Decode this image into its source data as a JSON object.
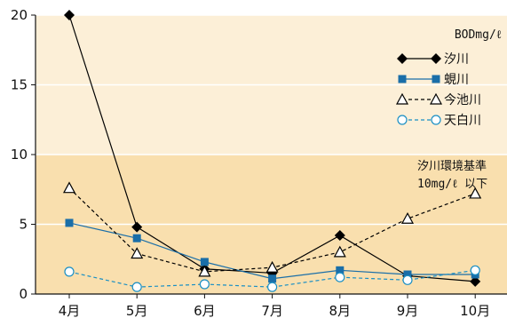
{
  "chart_data": {
    "type": "line",
    "categories": [
      "4月",
      "5月",
      "6月",
      "7月",
      "8月",
      "9月",
      "10月"
    ],
    "yticks": [
      "0",
      "5",
      "10",
      "15",
      "20"
    ],
    "ylim": [
      0,
      20
    ],
    "unit": "BODmg/ℓ",
    "series": [
      {
        "name": "汐川",
        "values": [
          20,
          4.8,
          1.8,
          1.5,
          4.2,
          1.3,
          0.9
        ],
        "color": "#000000",
        "marker": "diamond-filled",
        "dash": "solid"
      },
      {
        "name": "蜆川",
        "values": [
          5.1,
          4.0,
          2.3,
          1.1,
          1.7,
          1.4,
          1.4
        ],
        "color": "#1a6ea8",
        "marker": "square-filled",
        "dash": "solid"
      },
      {
        "name": "今池川",
        "values": [
          7.6,
          2.9,
          1.6,
          1.9,
          3.0,
          5.4,
          7.2
        ],
        "color": "#000000",
        "marker": "triangle-open",
        "dash": "dashed"
      },
      {
        "name": "天白川",
        "values": [
          1.6,
          0.5,
          0.7,
          0.5,
          1.2,
          1.0,
          1.7
        ],
        "color": "#1a8fc4",
        "marker": "circle-open",
        "dash": "dashed"
      }
    ],
    "annotation": {
      "line1": "汐川環境基準",
      "line2": "10mg/ℓ 以下"
    },
    "background": {
      "upper": "#fcefd7",
      "lower": "#f9dfae"
    },
    "threshold": 10,
    "legend_position": "top-right"
  }
}
